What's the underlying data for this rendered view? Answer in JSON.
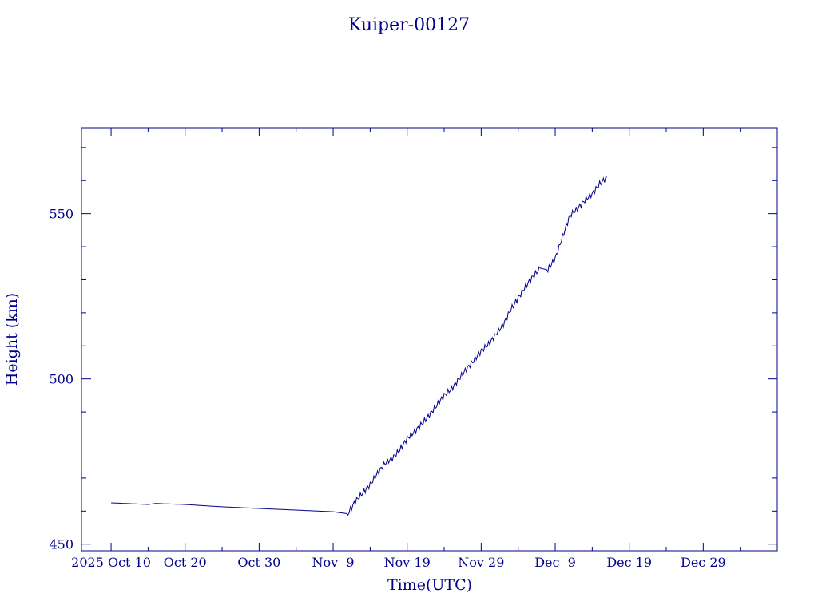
{
  "chart_data": {
    "type": "line",
    "title": "Kuiper-00127",
    "xlabel": "Time(UTC)",
    "ylabel": "Height (km)",
    "color": "#00008b",
    "grid": false,
    "x_range": [
      "2025-10-06",
      "2026-01-08"
    ],
    "ylim": [
      448,
      576
    ],
    "x_tick_labels": [
      "2025 Oct 10",
      "Oct 20",
      "Oct 30",
      "Nov  9",
      "Nov 19",
      "Nov 29",
      "Dec  9",
      "Dec 19",
      "Dec 29"
    ],
    "x_tick_dates": [
      "2025-10-10",
      "2025-10-20",
      "2025-10-30",
      "2025-11-09",
      "2025-11-19",
      "2025-11-29",
      "2025-12-09",
      "2025-12-19",
      "2025-12-29"
    ],
    "y_tick_labels": [
      "450",
      "500",
      "550"
    ],
    "y_tick_values": [
      450,
      500,
      550
    ],
    "series": [
      {
        "x": [
          "2025-10-10",
          "2025-10-15",
          "2025-10-16",
          "2025-10-20",
          "2025-10-25",
          "2025-10-30",
          "2025-11-04",
          "2025-11-09",
          "2025-11-11",
          "2025-11-12",
          "2025-11-13",
          "2025-11-14",
          "2025-11-15",
          "2025-11-16",
          "2025-11-17",
          "2025-11-18",
          "2025-11-19",
          "2025-11-20",
          "2025-11-21",
          "2025-11-22",
          "2025-11-23",
          "2025-11-24",
          "2025-11-25",
          "2025-11-26",
          "2025-11-27",
          "2025-11-28",
          "2025-11-29",
          "2025-11-30",
          "2025-12-01",
          "2025-12-02",
          "2025-12-03",
          "2025-12-04",
          "2025-12-05",
          "2025-12-06",
          "2025-12-07",
          "2025-12-08",
          "2025-12-09",
          "2025-12-10",
          "2025-12-11",
          "2025-12-12",
          "2025-12-13",
          "2025-12-14",
          "2025-12-15",
          "2025-12-16"
        ],
        "y": [
          462.5,
          462.0,
          462.3,
          462.0,
          461.3,
          460.8,
          460.3,
          459.8,
          459.2,
          463.0,
          465.5,
          468.0,
          471.5,
          474.5,
          476.0,
          478.5,
          482.0,
          484.0,
          486.5,
          489.0,
          492.0,
          495.0,
          497.0,
          500.0,
          503.0,
          505.5,
          508.5,
          510.5,
          513.5,
          516.5,
          521.0,
          524.5,
          528.0,
          531.0,
          533.5,
          533.0,
          536.5,
          543.0,
          549.5,
          551.5,
          554.0,
          556.0,
          559.0,
          561.0
        ]
      }
    ]
  }
}
